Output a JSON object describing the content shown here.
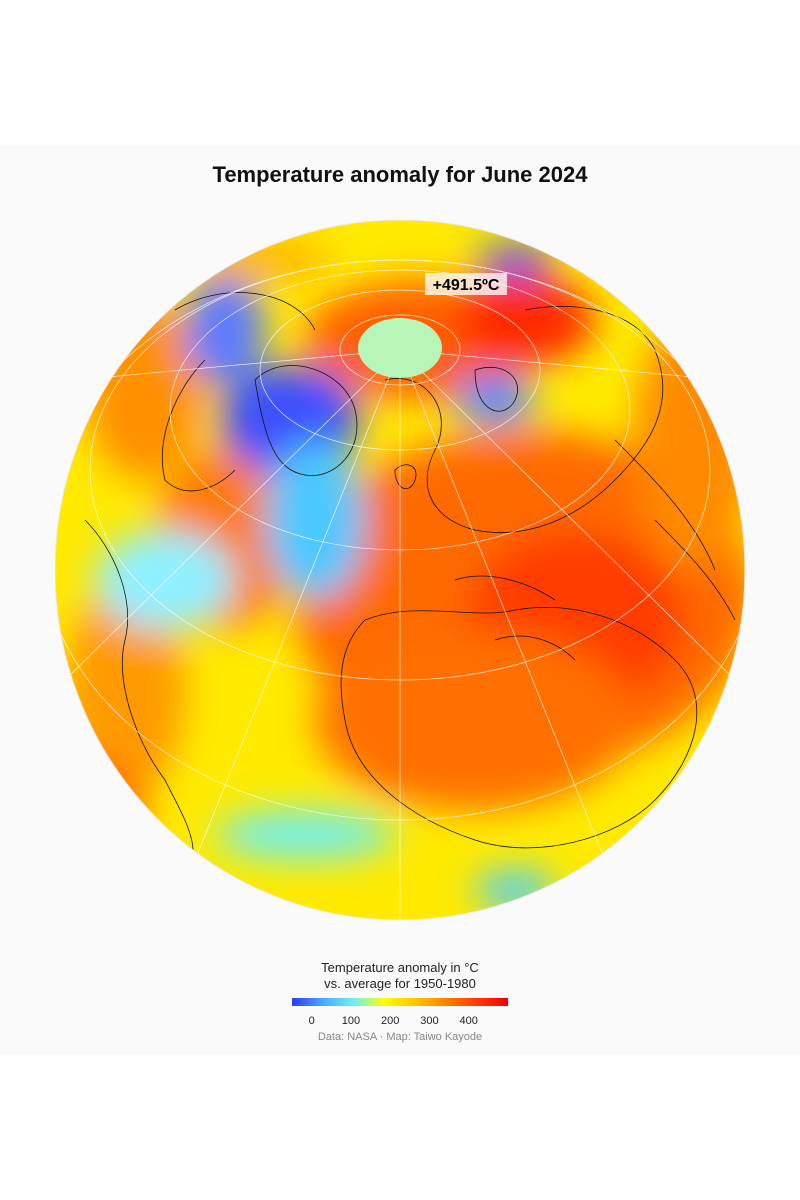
{
  "title": "Temperature anomaly for June 2024",
  "annotation": {
    "label": "+491.5ºC"
  },
  "legend": {
    "title_line1": "Temperature anomaly in °C",
    "title_line2": "vs. average for 1950-1980",
    "ticks": [
      "0",
      "100",
      "200",
      "300",
      "400"
    ],
    "tick_values": [
      0,
      100,
      200,
      300,
      400
    ],
    "range": [
      -50,
      500
    ],
    "colors": [
      "#2b3bf5",
      "#4aa8ff",
      "#6ef0f0",
      "#ffff00",
      "#ffc400",
      "#ff8000",
      "#ff3a00",
      "#f00000"
    ]
  },
  "caption": "Data: NASA · Map: Taiwo Kayode",
  "map": {
    "projection": "orthographic",
    "no_data_cap_color": "#b8f5b8"
  }
}
